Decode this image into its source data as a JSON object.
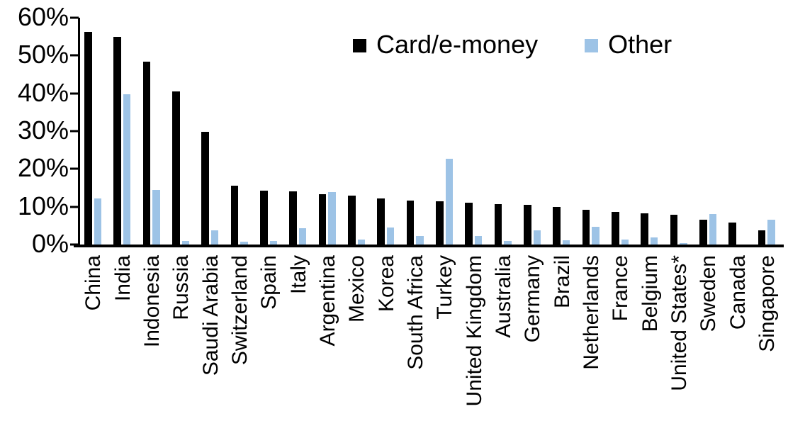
{
  "legend": {
    "series1_label": "Card/e-money",
    "series2_label": "Other"
  },
  "chart_data": {
    "type": "bar",
    "title": "",
    "xlabel": "",
    "ylabel": "",
    "ylim": [
      0,
      60
    ],
    "grid": false,
    "legend_position": "top-center",
    "y_ticks": [
      "0%",
      "10%",
      "20%",
      "30%",
      "40%",
      "50%",
      "60%"
    ],
    "categories": [
      "China",
      "India",
      "Indonesia",
      "Russia",
      "Saudi Arabia",
      "Switzerland",
      "Spain",
      "Italy",
      "Argentina",
      "Mexico",
      "Korea",
      "South Africa",
      "Turkey",
      "United Kingdom",
      "Australia",
      "Germany",
      "Brazil",
      "Netherlands",
      "France",
      "Belgium",
      "United States*",
      "Sweden",
      "Canada",
      "Singapore"
    ],
    "series": [
      {
        "name": "Card/e-money",
        "color": "#000000",
        "values": [
          56.2,
          55.0,
          48.3,
          40.5,
          29.8,
          15.5,
          14.2,
          14.1,
          13.3,
          12.9,
          12.2,
          11.7,
          11.5,
          11.0,
          10.7,
          10.5,
          10.0,
          9.2,
          8.6,
          8.2,
          7.8,
          6.5,
          5.9,
          3.8
        ]
      },
      {
        "name": "Other",
        "color": "#9DC3E6",
        "values": [
          12.1,
          39.8,
          14.4,
          1.0,
          3.7,
          0.7,
          0.9,
          4.4,
          13.9,
          1.3,
          4.5,
          2.3,
          22.6,
          2.2,
          1.0,
          3.8,
          1.2,
          4.7,
          1.4,
          1.9,
          0.3,
          8.0,
          0.0,
          6.6
        ]
      }
    ]
  }
}
